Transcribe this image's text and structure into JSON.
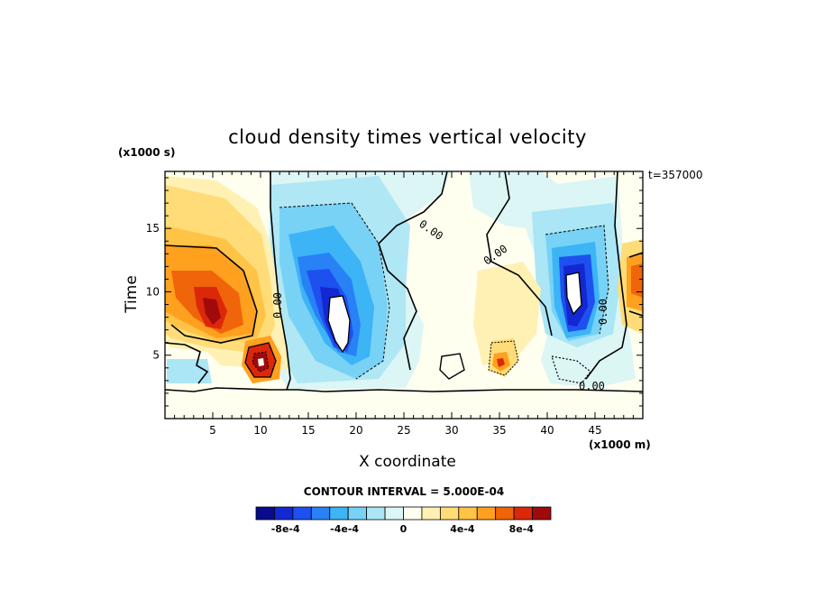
{
  "chart_data": {
    "type": "heatmap",
    "title": "cloud density times vertical velocity",
    "xlabel": "X coordinate",
    "ylabel": "Time",
    "x_unit_label": "(x1000 m)",
    "y_unit_label": "(x1000 s)",
    "annotation": "t=357000",
    "xlim": [
      0,
      50
    ],
    "ylim": [
      0,
      19.5
    ],
    "x_ticks": [
      5,
      10,
      15,
      20,
      25,
      30,
      35,
      40,
      45
    ],
    "y_ticks": [
      5,
      10,
      15
    ],
    "contour_interval_text": "CONTOUR INTERVAL = 5.000E-04",
    "contour_labels": [
      "0.00",
      "0.00",
      "0.00",
      "0.00",
      "0.00"
    ],
    "colorbar": {
      "levels": 16,
      "tick_labels": [
        "-8e-4",
        "-4e-4",
        "0",
        "4e-4",
        "8e-4"
      ],
      "tick_values": [
        -0.0008,
        -0.0004,
        0,
        0.0004,
        0.0008
      ],
      "range": [
        -0.001,
        0.001
      ],
      "colors": [
        "#0a0a8c",
        "#1428d2",
        "#1e50f0",
        "#2882f5",
        "#3cb4f5",
        "#78d2f5",
        "#aae6f5",
        "#dcf5f5",
        "#fffff0",
        "#fff0b4",
        "#ffdc78",
        "#ffc346",
        "#ffa01e",
        "#f0640a",
        "#dc280a",
        "#a00a0a"
      ]
    },
    "features": [
      {
        "x": 4.5,
        "y": 9,
        "value": 0.0009,
        "note": "positive max"
      },
      {
        "x": 10,
        "y": 4.5,
        "value": 0.0009,
        "note": "positive max"
      },
      {
        "x": 17.5,
        "y": 9,
        "value": -0.001,
        "note": "negative min"
      },
      {
        "x": 42.5,
        "y": 10.5,
        "value": -0.001,
        "note": "negative min"
      },
      {
        "x": 49,
        "y": 11.5,
        "value": 0.0008,
        "note": "positive max"
      },
      {
        "x": 35,
        "y": 4.5,
        "value": 0.0007,
        "note": "positive max"
      }
    ]
  }
}
